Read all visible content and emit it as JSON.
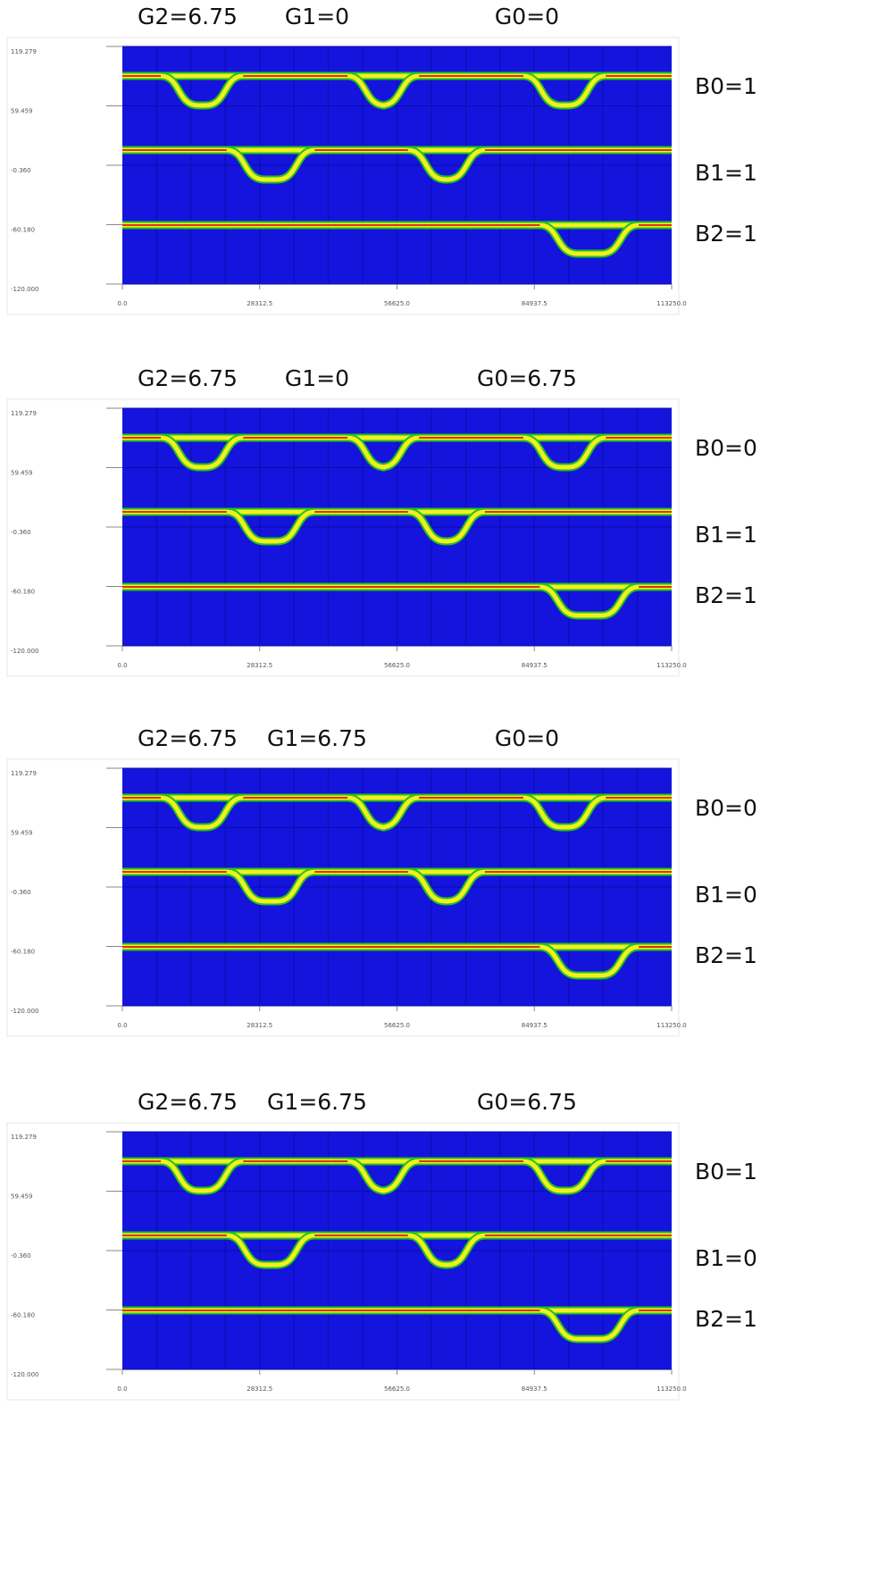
{
  "panels": [
    {
      "gates": [
        "G2=6.75",
        "G1=0",
        "G0=0"
      ],
      "bits": [
        "B0=1",
        "B1=1",
        "B2=1"
      ],
      "yticks": [
        119.279,
        59.459,
        {
          "value": -0.36,
          "label": "-0.360"
        },
        {
          "value": -60.18,
          "label": "-60.180"
        },
        {
          "value": -120,
          "label": "-120.000"
        }
      ],
      "xticks": [
        {
          "value": 0,
          "label": "0.0"
        },
        28312.5,
        {
          "value": 56625,
          "label": "56625.0"
        },
        84937.5,
        {
          "value": 113250,
          "label": "113250.0"
        }
      ]
    },
    {
      "gates": [
        "G2=6.75",
        "G1=0",
        "G0=6.75"
      ],
      "bits": [
        "B0=0",
        "B1=1",
        "B2=1"
      ],
      "yticks": [
        119.279,
        59.459,
        {
          "value": -0.36,
          "label": "-0.360"
        },
        {
          "value": -60.18,
          "label": "-60.180"
        },
        {
          "value": -120,
          "label": "-120.000"
        }
      ],
      "xticks": [
        {
          "value": 0,
          "label": "0.0"
        },
        28312.5,
        {
          "value": 56625,
          "label": "56625.0"
        },
        84937.5,
        {
          "value": 113250,
          "label": "113250.0"
        }
      ]
    },
    {
      "gates": [
        "G2=6.75",
        "G1=6.75",
        "G0=0"
      ],
      "bits": [
        "B0=0",
        "B1=0",
        "B2=1"
      ],
      "yticks": [
        119.279,
        59.459,
        {
          "value": -0.36,
          "label": "-0.360"
        },
        {
          "value": -60.18,
          "label": "-60.180"
        },
        {
          "value": -120,
          "label": "-120.000"
        }
      ],
      "xticks": [
        {
          "value": 0,
          "label": "0.0"
        },
        28312.5,
        {
          "value": 56625,
          "label": "56625.0"
        },
        84937.5,
        {
          "value": 113250,
          "label": "113250.0"
        }
      ]
    },
    {
      "gates": [
        "G2=6.75",
        "G1=6.75",
        "G0=6.75"
      ],
      "bits": [
        "B0=1",
        "B1=0",
        "B2=1"
      ],
      "yticks": [
        119.279,
        59.459,
        {
          "value": -0.36,
          "label": "-0.360"
        },
        {
          "value": -60.18,
          "label": "-60.180"
        },
        {
          "value": -120,
          "label": "-120.000"
        }
      ],
      "xticks": [
        {
          "value": 0,
          "label": "0.0"
        },
        28312.5,
        {
          "value": 56625,
          "label": "56625.0"
        },
        84937.5,
        {
          "value": 113250,
          "label": "113250.0"
        }
      ]
    }
  ]
}
